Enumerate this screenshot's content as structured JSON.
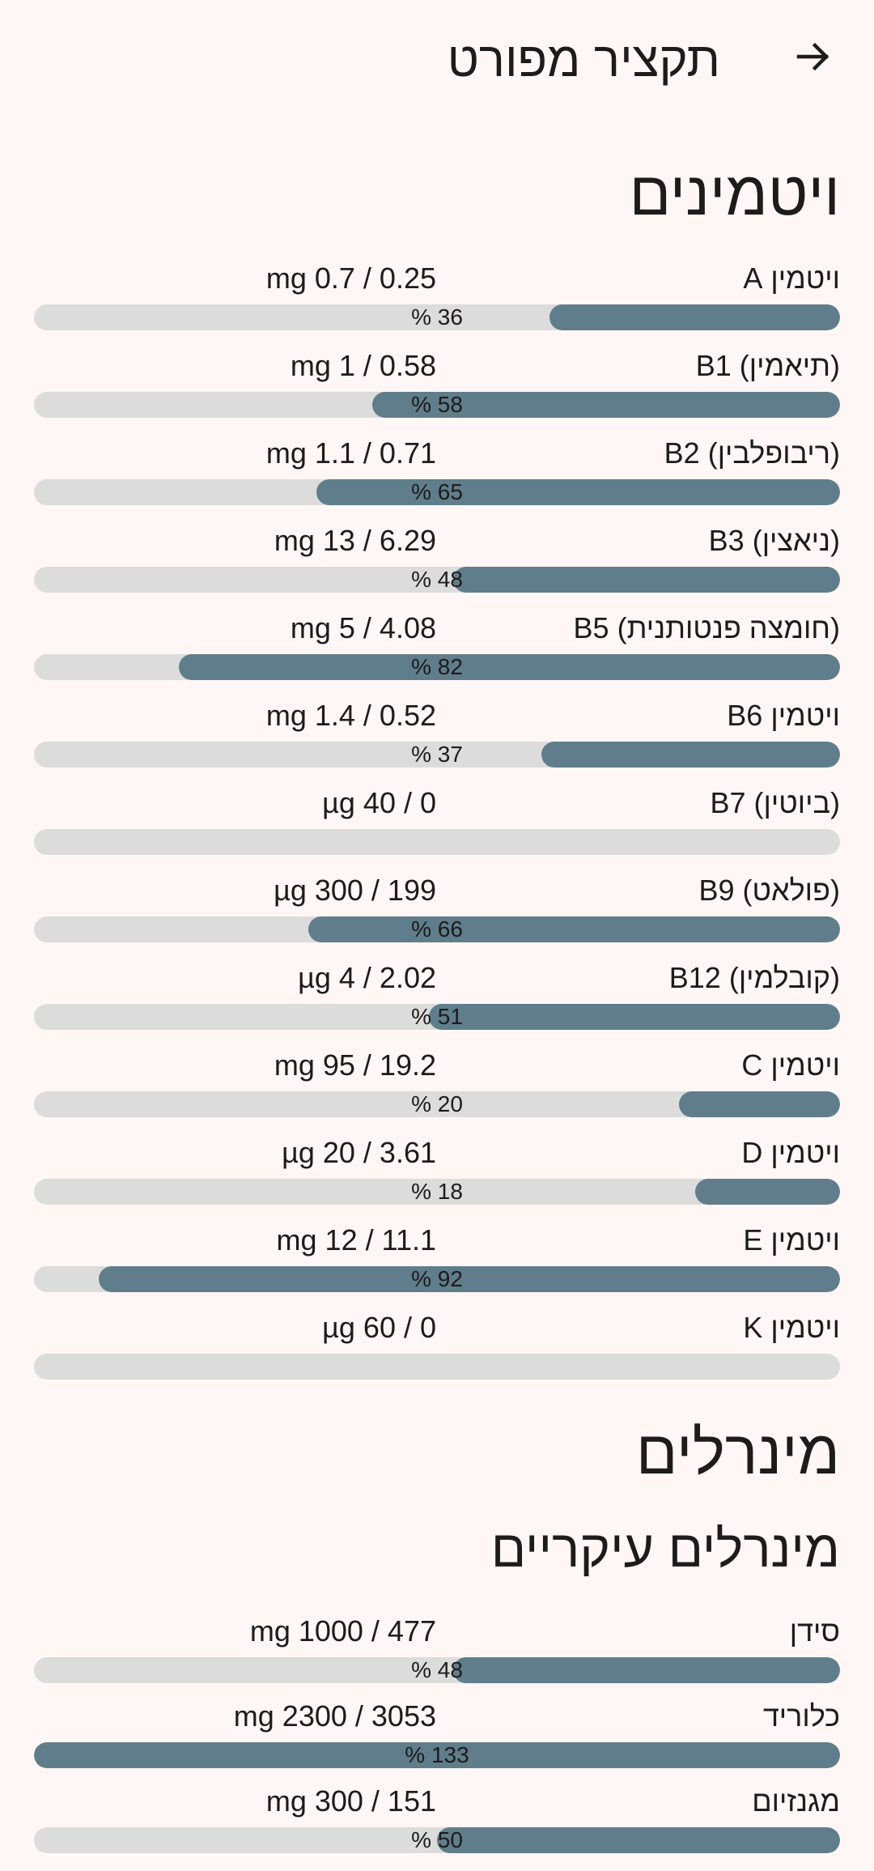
{
  "header": {
    "title": "תקציר מפורט",
    "back_icon": "arrow-forward-icon"
  },
  "sections": {
    "vitamins_title": "ויטמינים",
    "minerals_title": "מינרלים",
    "major_minerals_title": "מינרלים עיקריים"
  },
  "vitamins": [
    {
      "label": "ויטמין A",
      "amount": "mg 0.7 / 0.25",
      "percent_text": "% 36",
      "percent": 36
    },
    {
      "label": "B1 (תיאמין)",
      "amount": "mg 1 / 0.58",
      "percent_text": "% 58",
      "percent": 58
    },
    {
      "label": "B2 (ריבופלבין)",
      "amount": "mg 1.1 / 0.71",
      "percent_text": "% 65",
      "percent": 65
    },
    {
      "label": "B3 (ניאצין)",
      "amount": "mg 13 / 6.29",
      "percent_text": "% 48",
      "percent": 48
    },
    {
      "label": "B5 (חומצה פנטותנית)",
      "amount": "mg 5 / 4.08",
      "percent_text": "% 82",
      "percent": 82
    },
    {
      "label": "ויטמין B6",
      "amount": "mg 1.4 / 0.52",
      "percent_text": "% 37",
      "percent": 37
    },
    {
      "label": "B7 (ביוטין)",
      "amount": "µg 40 / 0",
      "percent_text": "",
      "percent": 0
    },
    {
      "label": "B9 (פולאט)",
      "amount": "µg 300 / 199",
      "percent_text": "% 66",
      "percent": 66
    },
    {
      "label": "B12 (קובלמין)",
      "amount": "µg 4 / 2.02",
      "percent_text": "% 51",
      "percent": 51
    },
    {
      "label": "ויטמין C",
      "amount": "mg 95 / 19.2",
      "percent_text": "% 20",
      "percent": 20
    },
    {
      "label": "ויטמין D",
      "amount": "µg 20 / 3.61",
      "percent_text": "% 18",
      "percent": 18
    },
    {
      "label": "ויטמין E",
      "amount": "mg 12 / 11.1",
      "percent_text": "% 92",
      "percent": 92
    },
    {
      "label": "ויטמין K",
      "amount": "µg 60 / 0",
      "percent_text": "",
      "percent": 0
    }
  ],
  "major_minerals": [
    {
      "label": "סידן",
      "amount": "mg 1000 / 477",
      "percent_text": "% 48",
      "percent": 48
    },
    {
      "label": "כלוריד",
      "amount": "mg 2300 / 3053",
      "percent_text": "% 133",
      "percent": 133
    },
    {
      "label": "מגנזיום",
      "amount": "mg 300 / 151",
      "percent_text": "% 50",
      "percent": 50
    }
  ],
  "colors": {
    "background": "#fef7f5",
    "bar_fill": "#607d8b",
    "bar_track": "#dcdcdc",
    "text": "#1d1b1b"
  }
}
